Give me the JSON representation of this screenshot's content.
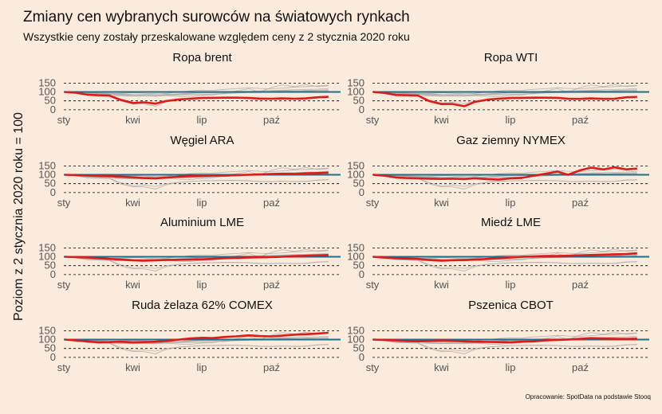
{
  "title": "Zmiany cen wybranych surowców na światowych rynkach",
  "subtitle": "Wszystkie ceny zostały przeskalowane względem ceny z 2 stycznia 2020 roku",
  "ylabel": "Poziom z 2 stycznia 2020 roku = 100",
  "caption": "Opracowanie: SpotData na podstawie Stooq",
  "colors": {
    "background": "#FAEBDC",
    "highlight": "#DD1C1A",
    "reference": "#1F6E8C",
    "others": "#A9A9A9",
    "grid": "#000000"
  },
  "chart_data": {
    "type": "line",
    "facets": [
      "Ropa brent",
      "Ropa WTI",
      "Węgiel ARA",
      "Gaz ziemny NYMEX",
      "Aluminium LME",
      "Miedź LME",
      "Ruda żelaza 62% COMEX",
      "Pszenica CBOT"
    ],
    "x": [
      "2020-01-02",
      "2020-01-16",
      "2020-02-01",
      "2020-02-15",
      "2020-03-01",
      "2020-03-15",
      "2020-04-01",
      "2020-04-15",
      "2020-05-01",
      "2020-05-15",
      "2020-06-01",
      "2020-06-15",
      "2020-07-01",
      "2020-07-15",
      "2020-08-01",
      "2020-08-15",
      "2020-09-01",
      "2020-09-15",
      "2020-10-01",
      "2020-10-15",
      "2020-11-01",
      "2020-11-15",
      "2020-12-01",
      "2020-12-15"
    ],
    "xticks": [
      "sty",
      "kwi",
      "lip",
      "paź"
    ],
    "xtick_dates": [
      "2020-01-01",
      "2020-04-01",
      "2020-07-01",
      "2020-10-01"
    ],
    "yticks": [
      0,
      50,
      100,
      150
    ],
    "ylim": [
      -5,
      165
    ],
    "reference_line": 100,
    "grid": "dashed horizontal at y ticks",
    "series": [
      {
        "values": [
          100,
          96,
          85,
          82,
          80,
          57,
          38,
          42,
          35,
          49,
          58,
          62,
          66,
          67,
          68,
          68,
          66,
          63,
          62,
          64,
          62,
          64,
          70,
          73
        ]
      },
      {
        "values": [
          100,
          95,
          83,
          82,
          80,
          50,
          32,
          33,
          20,
          44,
          57,
          62,
          66,
          67,
          68,
          68,
          67,
          62,
          61,
          64,
          61,
          62,
          70,
          72
        ]
      },
      {
        "values": [
          100,
          98,
          96,
          94,
          92,
          90,
          86,
          82,
          80,
          84,
          90,
          92,
          94,
          95,
          96,
          98,
          100,
          102,
          104,
          106,
          105,
          108,
          110,
          112
        ]
      },
      {
        "values": [
          100,
          95,
          85,
          82,
          80,
          78,
          77,
          78,
          76,
          80,
          75,
          73,
          80,
          82,
          95,
          105,
          118,
          100,
          125,
          140,
          130,
          142,
          130,
          135
        ]
      },
      {
        "values": [
          100,
          98,
          96,
          92,
          88,
          85,
          80,
          78,
          80,
          82,
          83,
          84,
          86,
          88,
          92,
          94,
          96,
          97,
          98,
          100,
          104,
          106,
          108,
          110
        ]
      },
      {
        "values": [
          100,
          95,
          92,
          90,
          88,
          82,
          78,
          80,
          82,
          84,
          88,
          92,
          96,
          100,
          102,
          104,
          104,
          106,
          108,
          110,
          112,
          114,
          116,
          120
        ]
      },
      {
        "values": [
          100,
          95,
          90,
          85,
          86,
          88,
          85,
          86,
          88,
          92,
          100,
          106,
          110,
          108,
          115,
          118,
          124,
          120,
          118,
          122,
          128,
          130,
          134,
          138
        ]
      },
      {
        "values": [
          100,
          98,
          95,
          92,
          90,
          92,
          95,
          93,
          90,
          88,
          87,
          86,
          85,
          88,
          90,
          95,
          98,
          100,
          104,
          108,
          106,
          104,
          103,
          105
        ]
      }
    ]
  }
}
